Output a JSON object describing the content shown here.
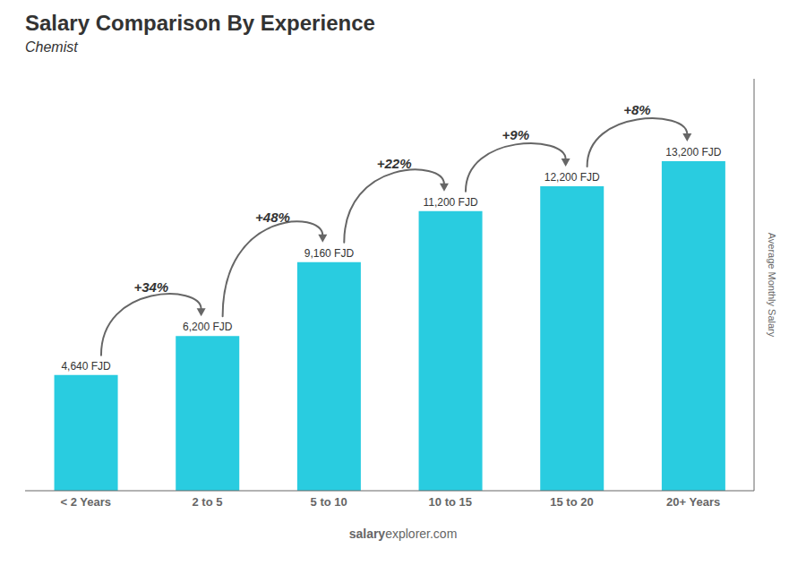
{
  "chart_data": {
    "type": "bar",
    "title": "Salary Comparison By Experience",
    "subtitle": "Chemist",
    "categories": [
      "< 2 Years",
      "2 to 5",
      "5 to 10",
      "10 to 15",
      "15 to 20",
      "20+ Years"
    ],
    "values": [
      4640,
      6200,
      9160,
      11200,
      12200,
      13200
    ],
    "value_labels": [
      "4,640 FJD",
      "6,200 FJD",
      "9,160 FJD",
      "11,200 FJD",
      "12,200 FJD",
      "13,200 FJD"
    ],
    "data_labels": true,
    "annotations": [
      "+34%",
      "+48%",
      "+22%",
      "+9%",
      "+8%"
    ],
    "ylabel": "Average Monthly Salary",
    "watermark": [
      "salary",
      "explorer.com"
    ],
    "color": "#29cce0",
    "ylim": [
      0,
      16500
    ],
    "tick_labels": "x",
    "grid": false
  }
}
